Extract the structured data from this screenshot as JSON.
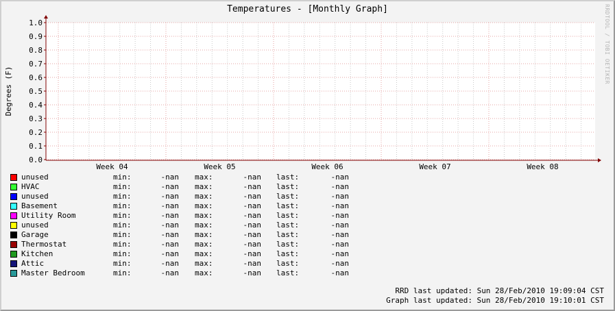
{
  "title": "Temperatures - [Monthly Graph]",
  "watermark": "RRDTOOL / TOBI OETIKER",
  "colors": {
    "major_grid": "#e6a3a3",
    "minor_grid": "#c9c9c9",
    "axis": "#800000",
    "plot_bg": "#ffffff"
  },
  "chart_data": {
    "type": "line",
    "title": "Temperatures - [Monthly Graph]",
    "ylabel": "Degrees (F)",
    "xlabel": "",
    "ylim": [
      0.0,
      1.0
    ],
    "y_ticks": [
      "0.0",
      "0.1",
      "0.2",
      "0.3",
      "0.4",
      "0.5",
      "0.6",
      "0.7",
      "0.8",
      "0.9",
      "1.0"
    ],
    "x_ticks": [
      "Week 04",
      "Week 05",
      "Week 06",
      "Week 07",
      "Week 08"
    ],
    "grid": true,
    "series": [
      {
        "name": "unused",
        "color": "#ff0000",
        "min": "-nan",
        "max": "-nan",
        "last": "-nan",
        "values": []
      },
      {
        "name": "HVAC",
        "color": "#33ff33",
        "min": "-nan",
        "max": "-nan",
        "last": "-nan",
        "values": []
      },
      {
        "name": "unused",
        "color": "#0000ff",
        "min": "-nan",
        "max": "-nan",
        "last": "-nan",
        "values": []
      },
      {
        "name": "Basement",
        "color": "#33ffff",
        "min": "-nan",
        "max": "-nan",
        "last": "-nan",
        "values": []
      },
      {
        "name": "Utility Room",
        "color": "#ff00ff",
        "min": "-nan",
        "max": "-nan",
        "last": "-nan",
        "values": []
      },
      {
        "name": "unused",
        "color": "#ffff00",
        "min": "-nan",
        "max": "-nan",
        "last": "-nan",
        "values": []
      },
      {
        "name": "Garage",
        "color": "#000000",
        "min": "-nan",
        "max": "-nan",
        "last": "-nan",
        "values": []
      },
      {
        "name": "Thermostat",
        "color": "#990000",
        "min": "-nan",
        "max": "-nan",
        "last": "-nan",
        "values": []
      },
      {
        "name": "Kitchen",
        "color": "#1f991f",
        "min": "-nan",
        "max": "-nan",
        "last": "-nan",
        "values": []
      },
      {
        "name": "Attic",
        "color": "#141478",
        "min": "-nan",
        "max": "-nan",
        "last": "-nan",
        "values": []
      },
      {
        "name": "Master Bedroom",
        "color": "#289999",
        "min": "-nan",
        "max": "-nan",
        "last": "-nan",
        "values": []
      }
    ]
  },
  "legend_labels": {
    "min": "min:",
    "max": "max:",
    "last": "last:"
  },
  "footer": {
    "rrd_updated": "RRD last updated: Sun 28/Feb/2010 19:09:04 CST",
    "graph_updated": "Graph last updated: Sun 28/Feb/2010 19:10:01 CST"
  }
}
